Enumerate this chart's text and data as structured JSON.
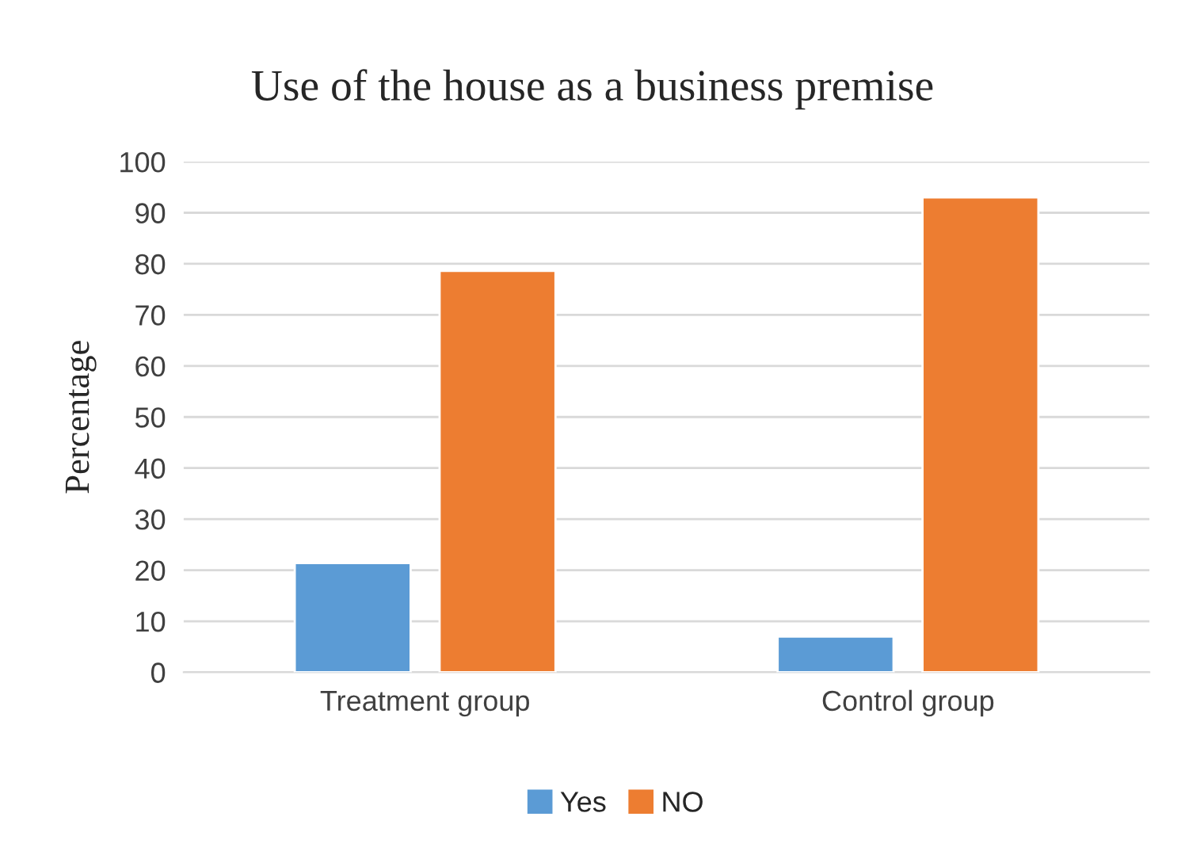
{
  "chart_data": {
    "type": "bar",
    "title": "Use of the house as a business premise",
    "ylabel": "Percentage",
    "categories": [
      "Treatment group",
      "Control group"
    ],
    "series": [
      {
        "name": "Yes",
        "color": "#5b9bd5",
        "values": [
          21.4,
          7
        ]
      },
      {
        "name": "NO",
        "color": "#ed7d31",
        "values": [
          78.6,
          93
        ]
      }
    ],
    "ylim": [
      0,
      100
    ],
    "yticks": [
      0,
      10,
      20,
      30,
      40,
      50,
      60,
      70,
      80,
      90,
      100
    ],
    "grid": "y",
    "legend": "bottom"
  }
}
